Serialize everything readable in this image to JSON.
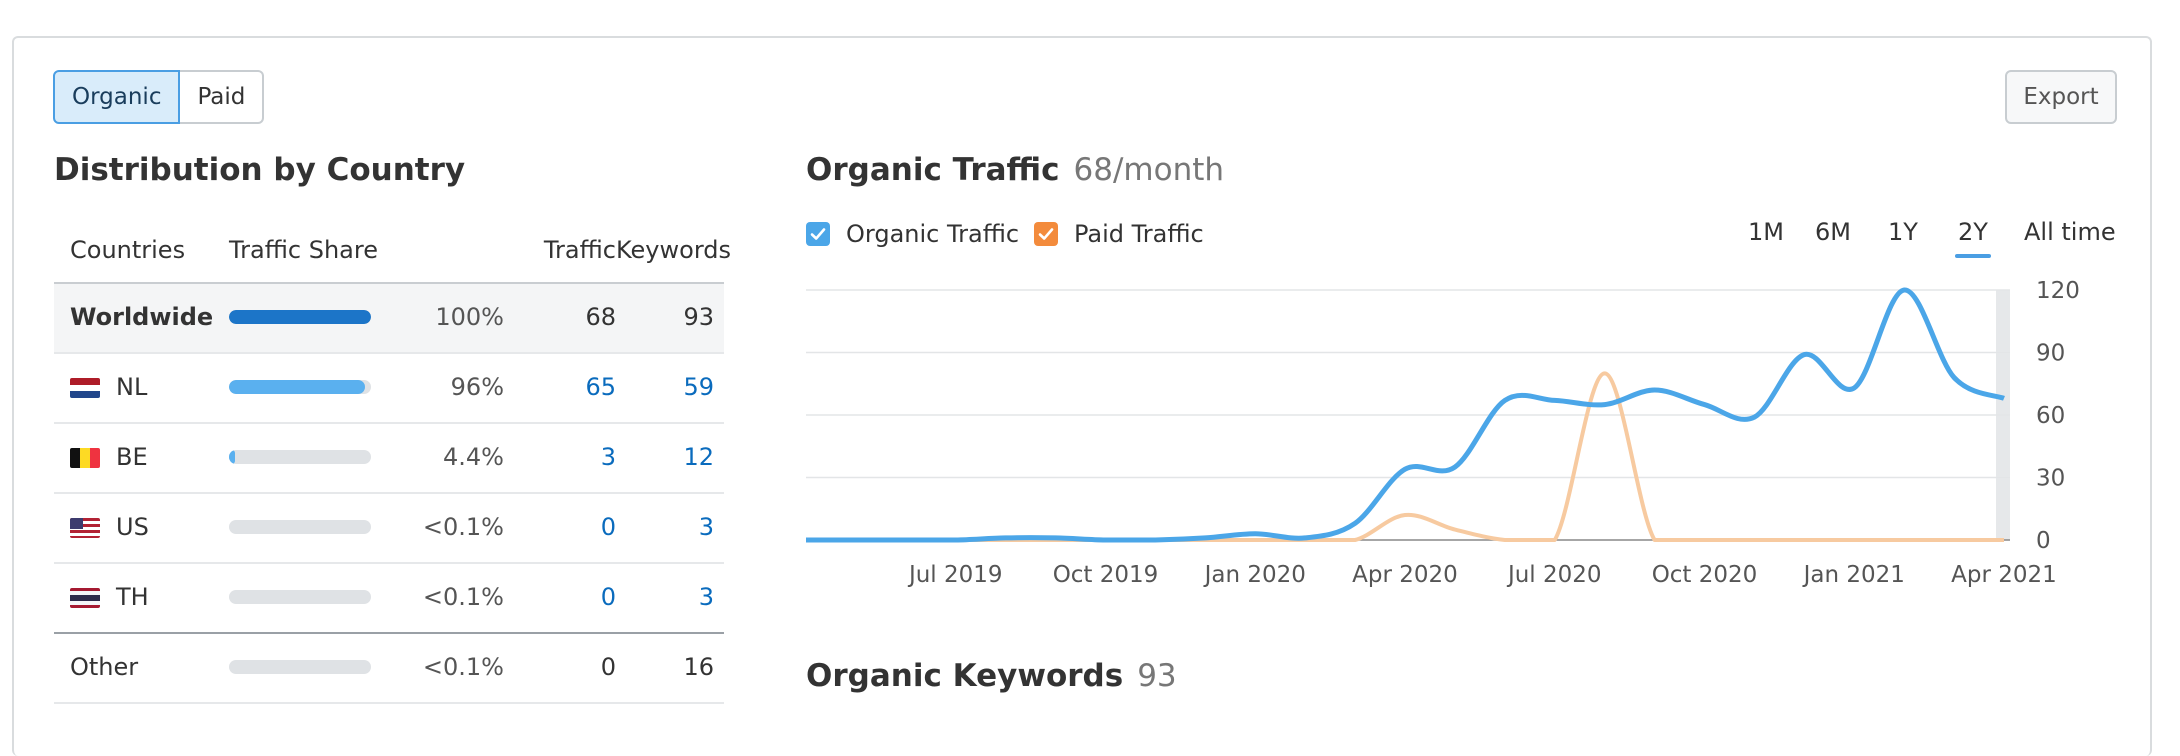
{
  "toggle": {
    "organic": "Organic",
    "paid": "Paid"
  },
  "export_label": "Export",
  "distribution": {
    "title": "Distribution by Country",
    "headers": {
      "countries": "Countries",
      "share": "Traffic Share",
      "traffic": "Traffic",
      "keywords": "Keywords"
    },
    "rows": [
      {
        "name": "Worldwide",
        "share": "100%",
        "share_value": 100,
        "traffic": "68",
        "keywords": "93"
      },
      {
        "name": "NL",
        "share": "96%",
        "share_value": 96,
        "traffic": "65",
        "keywords": "59"
      },
      {
        "name": "BE",
        "share": "4.4%",
        "share_value": 4.4,
        "traffic": "3",
        "keywords": "12"
      },
      {
        "name": "US",
        "share": "<0.1%",
        "share_value": 0.05,
        "traffic": "0",
        "keywords": "3"
      },
      {
        "name": "TH",
        "share": "<0.1%",
        "share_value": 0.05,
        "traffic": "0",
        "keywords": "3"
      },
      {
        "name": "Other",
        "share": "<0.1%",
        "share_value": 0.05,
        "traffic": "0",
        "keywords": "16"
      }
    ]
  },
  "traffic_section": {
    "title": "Organic Traffic",
    "value": "68/month",
    "legend": {
      "organic": "Organic Traffic",
      "paid": "Paid Traffic"
    },
    "ranges": [
      "1M",
      "6M",
      "1Y",
      "2Y",
      "All time"
    ],
    "selected_range": "2Y"
  },
  "keywords_section": {
    "title": "Organic Keywords",
    "value": "93"
  },
  "colors": {
    "organic": "#4ba6e8",
    "paid": "#f7caa0",
    "paid_checkbox": "#f38b3c",
    "bar_dark": "#1c75c8",
    "bar_light": "#5ab0ef",
    "link": "#0a6bbd"
  },
  "chart_data": {
    "type": "line",
    "x": [
      "2019-04",
      "2019-05",
      "2019-06",
      "2019-07",
      "2019-08",
      "2019-09",
      "2019-10",
      "2019-11",
      "2019-12",
      "2020-01",
      "2020-02",
      "2020-03",
      "2020-04",
      "2020-05",
      "2020-06",
      "2020-07",
      "2020-08",
      "2020-09",
      "2020-10",
      "2020-11",
      "2020-12",
      "2021-01",
      "2021-02",
      "2021-03",
      "2021-04"
    ],
    "x_ticks": [
      "Jul 2019",
      "Oct 2019",
      "Jan 2020",
      "Apr 2020",
      "Jul 2020",
      "Oct 2020",
      "Jan 2021",
      "Apr 2021"
    ],
    "series": [
      {
        "name": "Organic Traffic",
        "values": [
          0,
          0,
          0,
          0,
          1,
          1,
          0,
          0,
          1,
          3,
          1,
          8,
          34,
          35,
          67,
          67,
          65,
          72,
          65,
          59,
          89,
          73,
          120,
          78,
          68
        ]
      },
      {
        "name": "Paid Traffic",
        "values": [
          0,
          0,
          0,
          0,
          0,
          0,
          0,
          0,
          0,
          0,
          0,
          0,
          12,
          5,
          0,
          0,
          80,
          0,
          0,
          0,
          0,
          0,
          0,
          0,
          0
        ]
      }
    ],
    "y_ticks": [
      0,
      30,
      60,
      90,
      120
    ],
    "ylim": [
      0,
      120
    ],
    "grid": true
  }
}
